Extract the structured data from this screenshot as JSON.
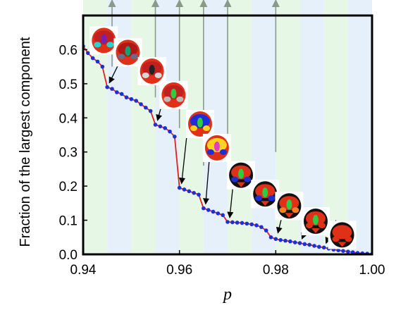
{
  "chart_data": {
    "type": "line",
    "xlabel": "p",
    "ylabel": "Fraction of the largest component",
    "xlim": [
      0.94,
      1.0
    ],
    "ylim": [
      0.0,
      0.7
    ],
    "x_ticks": [
      "0.94",
      "0.96",
      "0.98",
      "1.00"
    ],
    "y_ticks": [
      "0.0",
      "0.1",
      "0.2",
      "0.3",
      "0.4",
      "0.5",
      "0.6"
    ],
    "grid": false,
    "background_bands": {
      "width": 0.005,
      "colors": [
        "#e6f7e6",
        "#e6f0fb"
      ]
    },
    "series": [
      {
        "color": "#1f2fd6",
        "line_color": "#e02020",
        "x": [
          0.94,
          0.941,
          0.942,
          0.943,
          0.944,
          0.945,
          0.946,
          0.947,
          0.948,
          0.949,
          0.95,
          0.951,
          0.952,
          0.953,
          0.954,
          0.955,
          0.956,
          0.957,
          0.958,
          0.959,
          0.96,
          0.961,
          0.962,
          0.963,
          0.964,
          0.965,
          0.966,
          0.967,
          0.968,
          0.969,
          0.97,
          0.971,
          0.972,
          0.973,
          0.974,
          0.975,
          0.976,
          0.977,
          0.978,
          0.979,
          0.98,
          0.981,
          0.982,
          0.983,
          0.984,
          0.985,
          0.986,
          0.987,
          0.988,
          0.989,
          0.99,
          0.991,
          0.992,
          0.993,
          0.994,
          0.995,
          0.996,
          0.997,
          0.998,
          0.999,
          1.0
        ],
        "y": [
          0.61,
          0.59,
          0.575,
          0.565,
          0.55,
          0.49,
          0.485,
          0.475,
          0.47,
          0.46,
          0.455,
          0.45,
          0.44,
          0.43,
          0.42,
          0.38,
          0.375,
          0.37,
          0.36,
          0.345,
          0.195,
          0.19,
          0.185,
          0.18,
          0.175,
          0.135,
          0.13,
          0.125,
          0.12,
          0.115,
          0.095,
          0.094,
          0.093,
          0.092,
          0.09,
          0.088,
          0.085,
          0.08,
          0.07,
          0.05,
          0.045,
          0.042,
          0.04,
          0.038,
          0.035,
          0.033,
          0.03,
          0.028,
          0.025,
          0.022,
          0.02,
          0.017,
          0.014,
          0.012,
          0.01,
          0.008,
          0.006,
          0.004,
          0.003,
          0.002,
          0.001
        ]
      }
    ],
    "annotations": [
      {
        "x": 0.945,
        "y": 0.49,
        "label_x": 0.9485,
        "label_y": 0.59
      },
      {
        "x": 0.955,
        "y": 0.38,
        "label_x": 0.9575,
        "label_y": 0.5
      },
      {
        "x": 0.96,
        "y": 0.195,
        "label_x": 0.962,
        "label_y": 0.41
      },
      {
        "x": 0.965,
        "y": 0.135,
        "label_x": 0.9665,
        "label_y": 0.33
      },
      {
        "x": 0.97,
        "y": 0.095,
        "label_x": 0.9715,
        "label_y": 0.255
      },
      {
        "x": 0.98,
        "y": 0.05,
        "label_x": 0.9825,
        "label_y": 0.18
      },
      {
        "x": 0.985,
        "y": 0.033,
        "label_x": 0.988,
        "label_y": 0.13
      },
      {
        "x": 0.99,
        "y": 0.02,
        "label_x": 0.9925,
        "label_y": 0.1
      }
    ],
    "top_markers": [
      0.946,
      0.955,
      0.96,
      0.965,
      0.97,
      0.98
    ],
    "insets": [
      {
        "x": 0.9418,
        "y": 0.66,
        "palette": [
          "#e03018",
          "#c02020",
          "#7a1fb0",
          "#2fd0d0"
        ]
      },
      {
        "x": 0.9468,
        "y": 0.625,
        "palette": [
          "#e03018",
          "#b01818",
          "#1aa070",
          "#6a6a8a"
        ]
      },
      {
        "x": 0.9518,
        "y": 0.57,
        "palette": [
          "#e03018",
          "#c02020",
          "#222222",
          "#d8d8d8"
        ]
      },
      {
        "x": 0.9563,
        "y": 0.5,
        "palette": [
          "#e03018",
          "#c02020",
          "#2ecc40",
          "#bbbbbb"
        ]
      },
      {
        "x": 0.9618,
        "y": 0.415,
        "palette": [
          "#e03018",
          "#1f2fd6",
          "#2ecc40",
          "#ffd21f"
        ]
      },
      {
        "x": 0.9653,
        "y": 0.345,
        "palette": [
          "#e03018",
          "#ffd21f",
          "#e040c0",
          "#1f2fd6"
        ]
      },
      {
        "x": 0.9703,
        "y": 0.265,
        "palette": [
          "#111111",
          "#e03018",
          "#2ecc40",
          "#1f2fd6"
        ]
      },
      {
        "x": 0.9753,
        "y": 0.21,
        "palette": [
          "#111111",
          "#e03018",
          "#2ecc40",
          "#1f2fd6"
        ]
      },
      {
        "x": 0.9803,
        "y": 0.175,
        "palette": [
          "#111111",
          "#e03018",
          "#2ecc40",
          "#f08020"
        ]
      },
      {
        "x": 0.9858,
        "y": 0.13,
        "palette": [
          "#111111",
          "#e03018",
          "#2ecc40",
          "#e03018"
        ]
      },
      {
        "x": 0.9913,
        "y": 0.09,
        "palette": [
          "#111111",
          "#e03018",
          "#e03018",
          "#e03018"
        ]
      }
    ]
  }
}
